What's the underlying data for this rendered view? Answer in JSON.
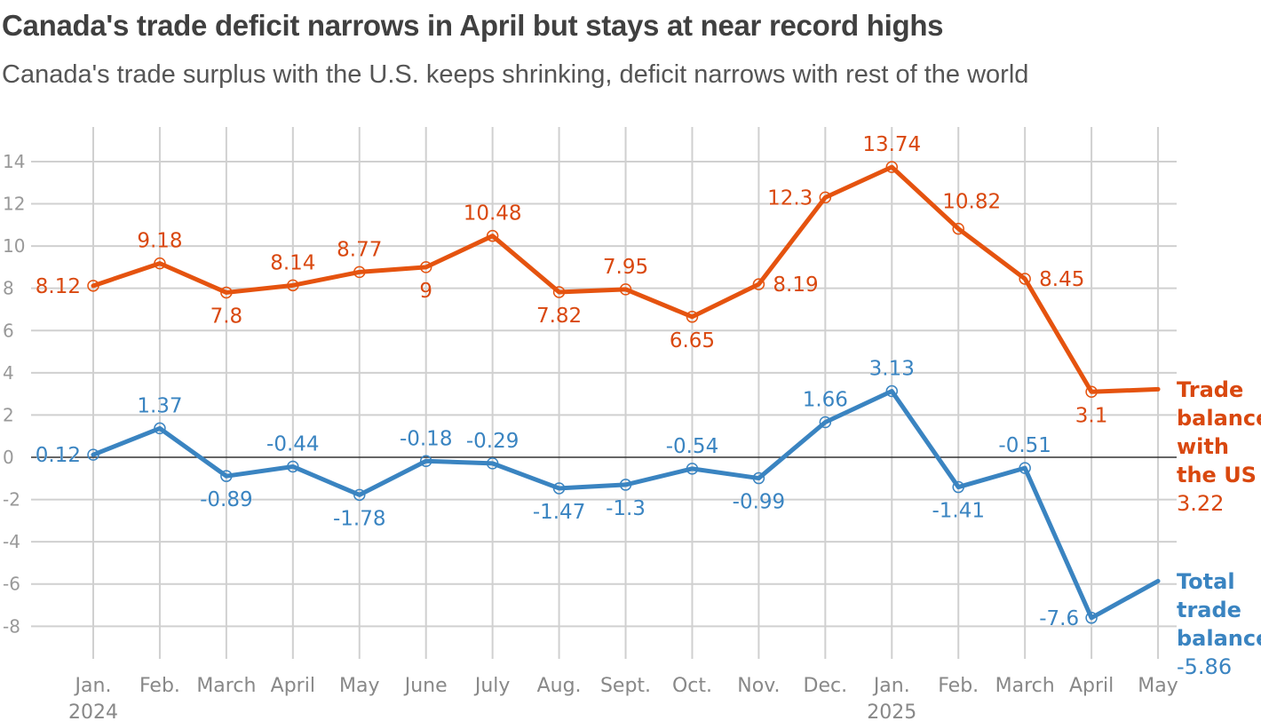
{
  "title": "Canada's trade deficit narrows in April but stays at near record highs",
  "subtitle": "Canada's trade surplus with the U.S. keeps shrinking, deficit narrows with rest of the world",
  "chart_data": {
    "type": "line",
    "categories": [
      "Jan.",
      "Feb.",
      "March",
      "April",
      "May",
      "June",
      "July",
      "Aug.",
      "Sept.",
      "Oct.",
      "Nov.",
      "Dec.",
      "Jan.",
      "Feb.",
      "March",
      "April",
      "May"
    ],
    "year_labels": [
      {
        "index": 0,
        "label": "2024"
      },
      {
        "index": 12,
        "label": "2025"
      }
    ],
    "yticks": [
      -8,
      -6,
      -4,
      -2,
      0,
      2,
      4,
      6,
      8,
      10,
      12,
      14
    ],
    "ylim": [
      -9.5,
      15.5
    ],
    "grid": true,
    "series": [
      {
        "name": "Trade balance with the US",
        "end_label": [
          "Trade",
          "balance",
          "with",
          "the US"
        ],
        "end_value": "3.22",
        "color": "#e5530f",
        "label_color": "#d9480f",
        "values": [
          8.12,
          9.18,
          7.8,
          8.14,
          8.77,
          9,
          10.48,
          7.82,
          7.95,
          6.65,
          8.19,
          12.3,
          13.74,
          10.82,
          8.45,
          3.1,
          3.22
        ],
        "labels": [
          "8.12",
          "9.18",
          "7.8",
          "8.14",
          "8.77",
          "9",
          "10.48",
          "7.82",
          "7.95",
          "6.65",
          "8.19",
          "12.3",
          "13.74",
          "10.82",
          "8.45",
          "3.1",
          ""
        ]
      },
      {
        "name": "Total trade balance",
        "end_label": [
          "Total",
          "trade",
          "balance"
        ],
        "end_value": "-5.86",
        "color": "#3a84c1",
        "label_color": "#3a84c1",
        "values": [
          0.12,
          1.37,
          -0.89,
          -0.44,
          -1.78,
          -0.18,
          -0.29,
          -1.47,
          -1.3,
          -0.54,
          -0.99,
          1.66,
          3.13,
          -1.41,
          -0.51,
          -7.6,
          -5.86
        ],
        "labels": [
          "0.12",
          "1.37",
          "-0.89",
          "-0.44",
          "-1.78",
          "-0.18",
          "-0.29",
          "-1.47",
          "-1.3",
          "-0.54",
          "-0.99",
          "1.66",
          "3.13",
          "-1.41",
          "-0.51",
          "-7.6",
          ""
        ]
      }
    ],
    "xlabel": "",
    "ylabel": ""
  }
}
